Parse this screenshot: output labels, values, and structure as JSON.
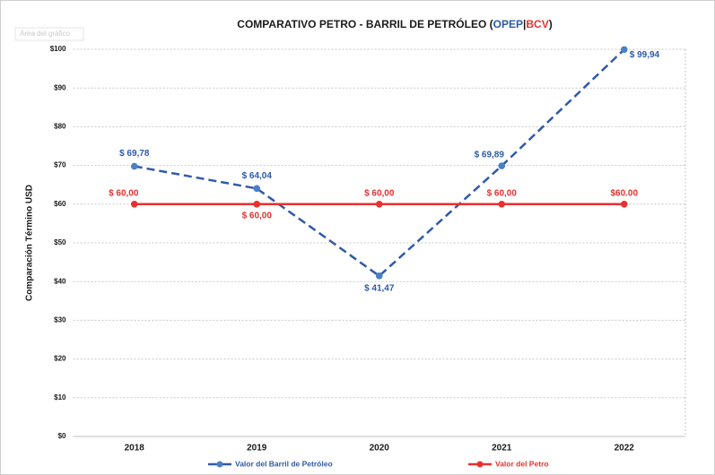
{
  "chart_data": {
    "type": "line",
    "title_parts": [
      "COMPARATIVO PETRO - BARRIL DE PETRÓLEO (",
      "OPEP",
      "|",
      "BCV",
      ")"
    ],
    "title_colors": [
      "#1a1a1a",
      "#2e5aa8",
      "#1a1a1a",
      "#e8312f",
      "#1a1a1a"
    ],
    "annotation": "Área del gráfico",
    "ylabel": "Comparación Término USD",
    "categories": [
      "2018",
      "2019",
      "2020",
      "2021",
      "2022"
    ],
    "series": [
      {
        "name": "Valor del Barril de Petróleo",
        "color": "#2e5aa8",
        "dashed": true,
        "values": [
          69.78,
          64.04,
          41.47,
          69.89,
          99.94
        ],
        "value_labels": [
          "$ 69,78",
          "$ 64,04",
          "$ 41,47",
          "$ 69,89",
          "$ 99,94"
        ]
      },
      {
        "name": "Valor del Petro",
        "color": "#e8312f",
        "dashed": false,
        "values": [
          60,
          60,
          60,
          60,
          60
        ],
        "value_labels": [
          "$ 60,00",
          "$ 60,00",
          "$ 60,00",
          "$ 60,00",
          "$60.00"
        ]
      }
    ],
    "ylim": [
      0,
      100
    ],
    "yticks": [
      {
        "value": 0,
        "label": "$0"
      },
      {
        "value": 10,
        "label": "$10"
      },
      {
        "value": 20,
        "label": "$20"
      },
      {
        "value": 30,
        "label": "$30"
      },
      {
        "value": 40,
        "label": "$40"
      },
      {
        "value": 50,
        "label": "$50"
      },
      {
        "value": 60,
        "label": "$60"
      },
      {
        "value": 70,
        "label": "$70"
      },
      {
        "value": 80,
        "label": "$80"
      },
      {
        "value": 90,
        "label": "$90"
      },
      {
        "value": 100,
        "label": "$100"
      }
    ],
    "grid": true,
    "legend": "bottom"
  }
}
